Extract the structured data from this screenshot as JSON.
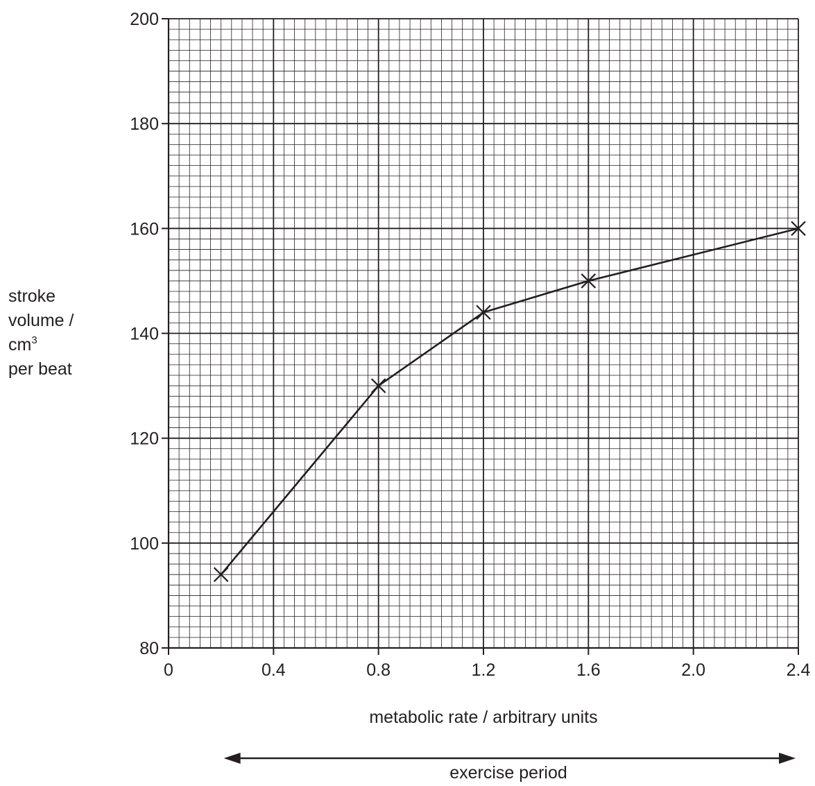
{
  "chart_data": {
    "type": "line",
    "xlabel": "metabolic rate / arbitrary units",
    "ylabel": {
      "line1": "stroke",
      "line2": "volume /",
      "line3_base": "cm",
      "line3_sup": "3",
      "line4": "per beat"
    },
    "xlim": [
      0,
      2.4
    ],
    "ylim": [
      80,
      200
    ],
    "x_ticks": [
      {
        "value": 0,
        "label": "0"
      },
      {
        "value": 0.4,
        "label": "0.4"
      },
      {
        "value": 0.8,
        "label": "0.8"
      },
      {
        "value": 1.2,
        "label": "1.2"
      },
      {
        "value": 1.6,
        "label": "1.6"
      },
      {
        "value": 2.0,
        "label": "2.0"
      },
      {
        "value": 2.4,
        "label": "2.4"
      }
    ],
    "y_ticks": [
      {
        "value": 80,
        "label": "80"
      },
      {
        "value": 100,
        "label": "100"
      },
      {
        "value": 120,
        "label": "120"
      },
      {
        "value": 140,
        "label": "140"
      },
      {
        "value": 160,
        "label": "160"
      },
      {
        "value": 180,
        "label": "180"
      },
      {
        "value": 200,
        "label": "200"
      }
    ],
    "grid": true,
    "marker": "cross",
    "points": [
      {
        "x": 0.2,
        "y": 94
      },
      {
        "x": 0.8,
        "y": 130
      },
      {
        "x": 1.2,
        "y": 144
      },
      {
        "x": 1.6,
        "y": 150
      },
      {
        "x": 2.4,
        "y": 160
      }
    ],
    "annotation": {
      "text": "exercise period",
      "type": "double-arrow",
      "x_start": 0.2,
      "x_end": 2.4
    },
    "colors": {
      "ink": "#231f20",
      "background": "#ffffff"
    }
  }
}
